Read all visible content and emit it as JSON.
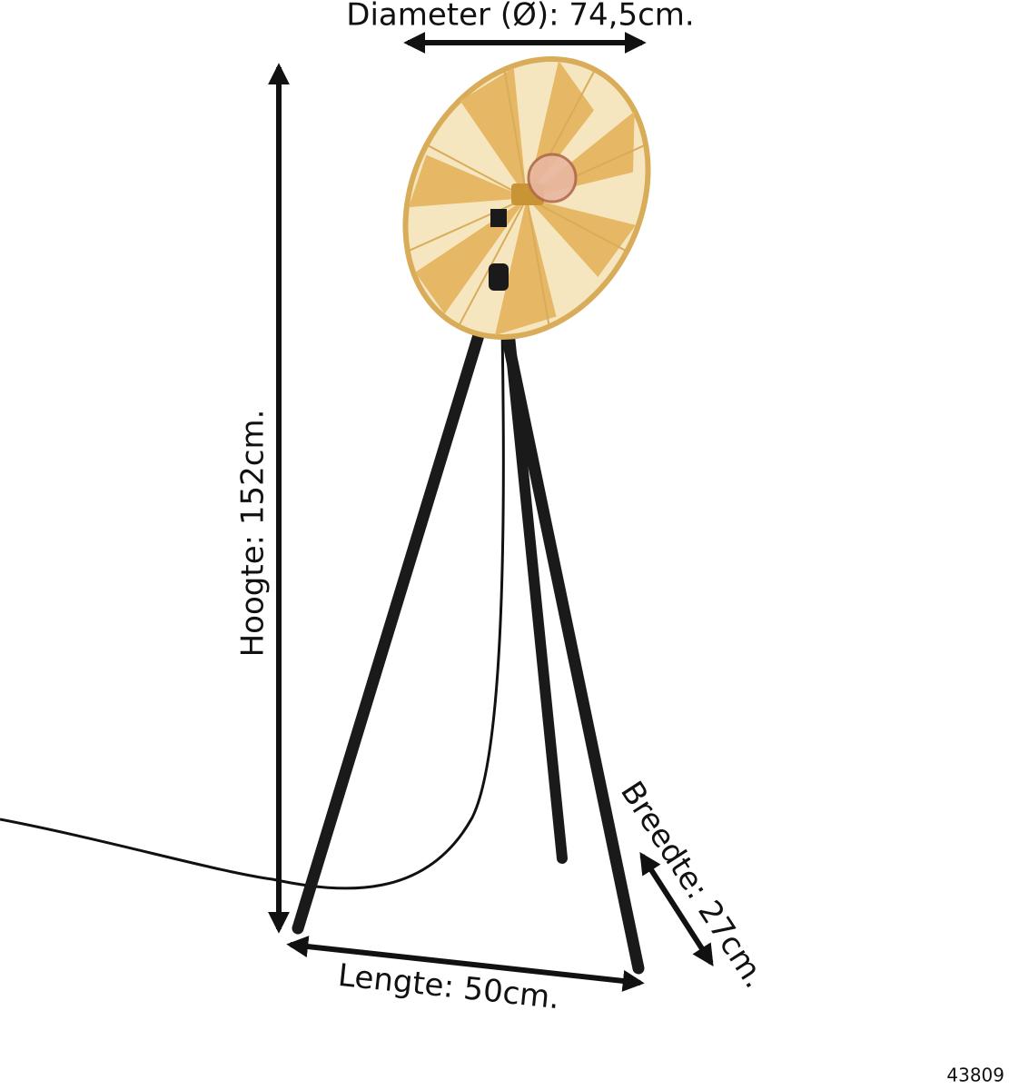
{
  "dimensions": {
    "diameter": "Diameter (Ø): 74,5cm.",
    "height": "Hoogte: 152cm.",
    "length": "Lengte: 50cm.",
    "width": "Breedte: 27cm."
  },
  "product_code": "43809"
}
